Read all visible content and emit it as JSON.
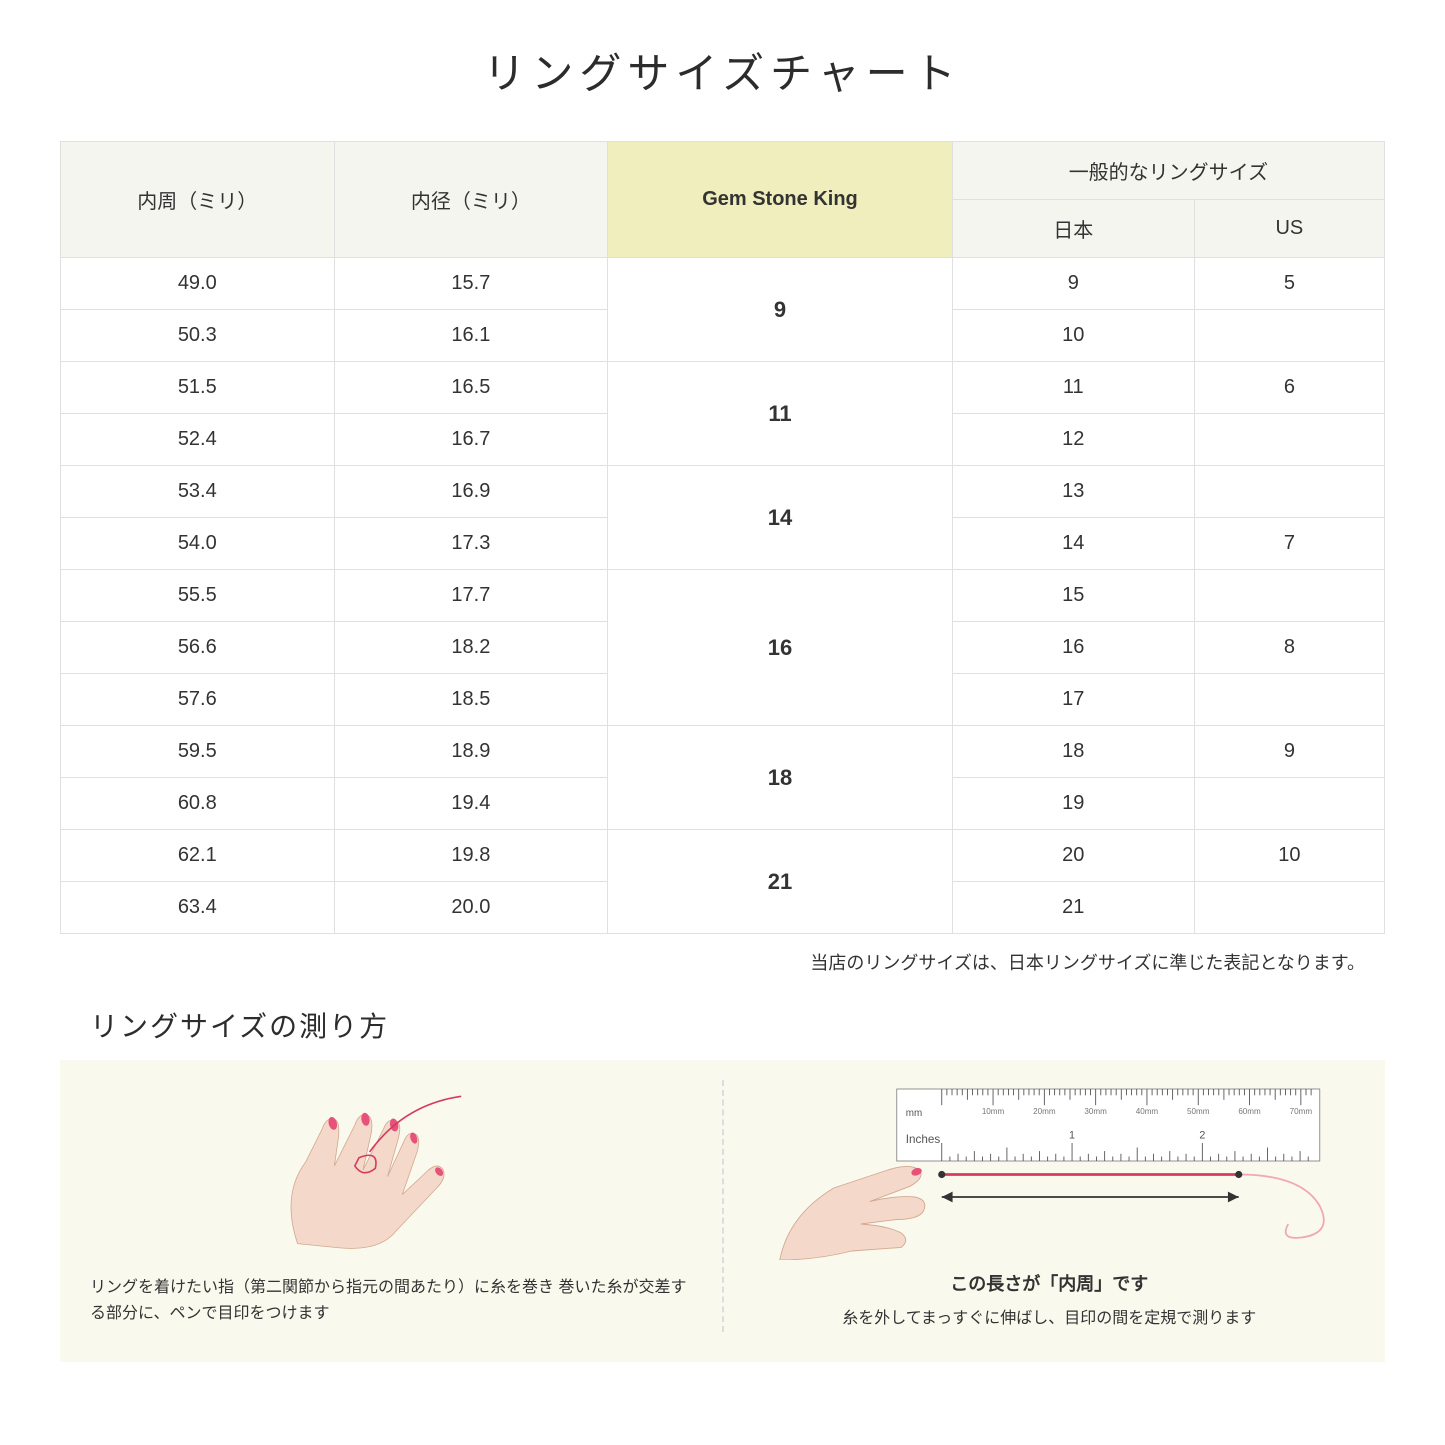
{
  "title": "リングサイズチャート",
  "table": {
    "headers": {
      "circumference": "内周（ミリ）",
      "diameter": "内径（ミリ）",
      "gsk": "Gem Stone King",
      "general_group": "一般的なリングサイズ",
      "japan": "日本",
      "us": "US"
    },
    "header_bg": "#f5f5ef",
    "highlight_bg": "#f0eebd",
    "border_color": "#e0e0e0",
    "groups": [
      {
        "gsk": "9",
        "rows": [
          {
            "circ": "49.0",
            "diam": "15.7",
            "jp": "9",
            "us": "5"
          },
          {
            "circ": "50.3",
            "diam": "16.1",
            "jp": "10",
            "us": ""
          }
        ]
      },
      {
        "gsk": "11",
        "rows": [
          {
            "circ": "51.5",
            "diam": "16.5",
            "jp": "11",
            "us": "6"
          },
          {
            "circ": "52.4",
            "diam": "16.7",
            "jp": "12",
            "us": ""
          }
        ]
      },
      {
        "gsk": "14",
        "rows": [
          {
            "circ": "53.4",
            "diam": "16.9",
            "jp": "13",
            "us": ""
          },
          {
            "circ": "54.0",
            "diam": "17.3",
            "jp": "14",
            "us": "7"
          }
        ]
      },
      {
        "gsk": "16",
        "rows": [
          {
            "circ": "55.5",
            "diam": "17.7",
            "jp": "15",
            "us": ""
          },
          {
            "circ": "56.6",
            "diam": "18.2",
            "jp": "16",
            "us": "8"
          },
          {
            "circ": "57.6",
            "diam": "18.5",
            "jp": "17",
            "us": ""
          }
        ]
      },
      {
        "gsk": "18",
        "rows": [
          {
            "circ": "59.5",
            "diam": "18.9",
            "jp": "18",
            "us": "9"
          },
          {
            "circ": "60.8",
            "diam": "19.4",
            "jp": "19",
            "us": ""
          }
        ]
      },
      {
        "gsk": "21",
        "rows": [
          {
            "circ": "62.1",
            "diam": "19.8",
            "jp": "20",
            "us": "10"
          },
          {
            "circ": "63.4",
            "diam": "20.0",
            "jp": "21",
            "us": ""
          }
        ]
      }
    ]
  },
  "note": "当店のリングサイズは、日本リングサイズに準じた表記となります。",
  "howto": {
    "title": "リングサイズの測り方",
    "left_caption": "リングを着けたい指（第二関節から指元の間あたり）に糸を巻き\n巻いた糸が交差する部分に、ペンで目印をつけます",
    "right_caption": "糸を外してまっすぐに伸ばし、目印の間を定規で測ります",
    "measure_label": "この長さが「内周」です",
    "ruler": {
      "mm_label": "mm",
      "inches_label": "Inches",
      "mm_ticks": [
        "10mm",
        "20mm",
        "30mm",
        "40mm",
        "50mm",
        "60mm",
        "70mm"
      ],
      "inch_ticks": [
        "1",
        "2"
      ]
    },
    "bg_color": "#faf9ed",
    "skin_color": "#f4d9cb",
    "nail_color": "#e6527a",
    "thread_color": "#d63b5f"
  }
}
